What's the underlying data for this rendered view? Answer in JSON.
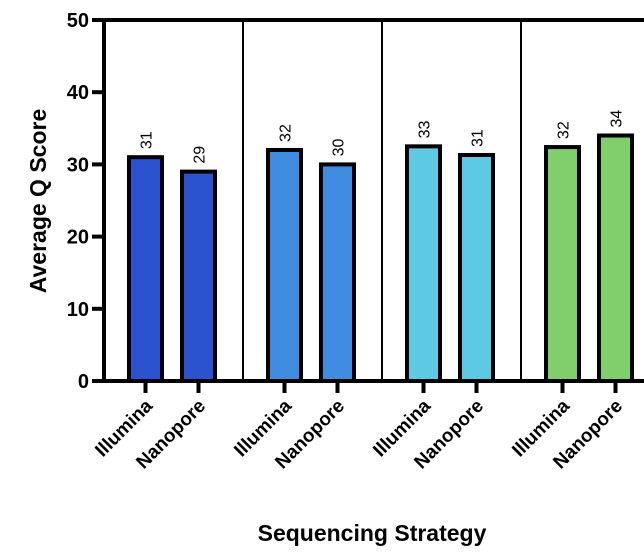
{
  "chart_data": {
    "type": "bar",
    "title": "",
    "xlabel": "Sequencing Strategy",
    "ylabel": "Average Q Score",
    "ylim": [
      0,
      50
    ],
    "yticks": [
      0,
      10,
      20,
      30,
      40,
      50
    ],
    "grid": false,
    "legend": "none",
    "groups": [
      {
        "bars": [
          {
            "category": "Illumina",
            "value": 31,
            "label": "31",
            "color": "#2b52cf"
          },
          {
            "category": "Nanopore",
            "value": 29,
            "label": "29",
            "color": "#2b52cf"
          }
        ]
      },
      {
        "bars": [
          {
            "category": "Illumina",
            "value": 32,
            "label": "32",
            "color": "#3f8ce0"
          },
          {
            "category": "Nanopore",
            "value": 30,
            "label": "30",
            "color": "#3f8ce0"
          }
        ]
      },
      {
        "bars": [
          {
            "category": "Illumina",
            "value": 32.5,
            "label": "33",
            "color": "#5ec9e3"
          },
          {
            "category": "Nanopore",
            "value": 31.3,
            "label": "31",
            "color": "#5ec9e3"
          }
        ]
      },
      {
        "bars": [
          {
            "category": "Illumina",
            "value": 32.4,
            "label": "32",
            "color": "#7fcf6c"
          },
          {
            "category": "Nanopore",
            "value": 34,
            "label": "34",
            "color": "#7fcf6c"
          }
        ]
      }
    ]
  }
}
